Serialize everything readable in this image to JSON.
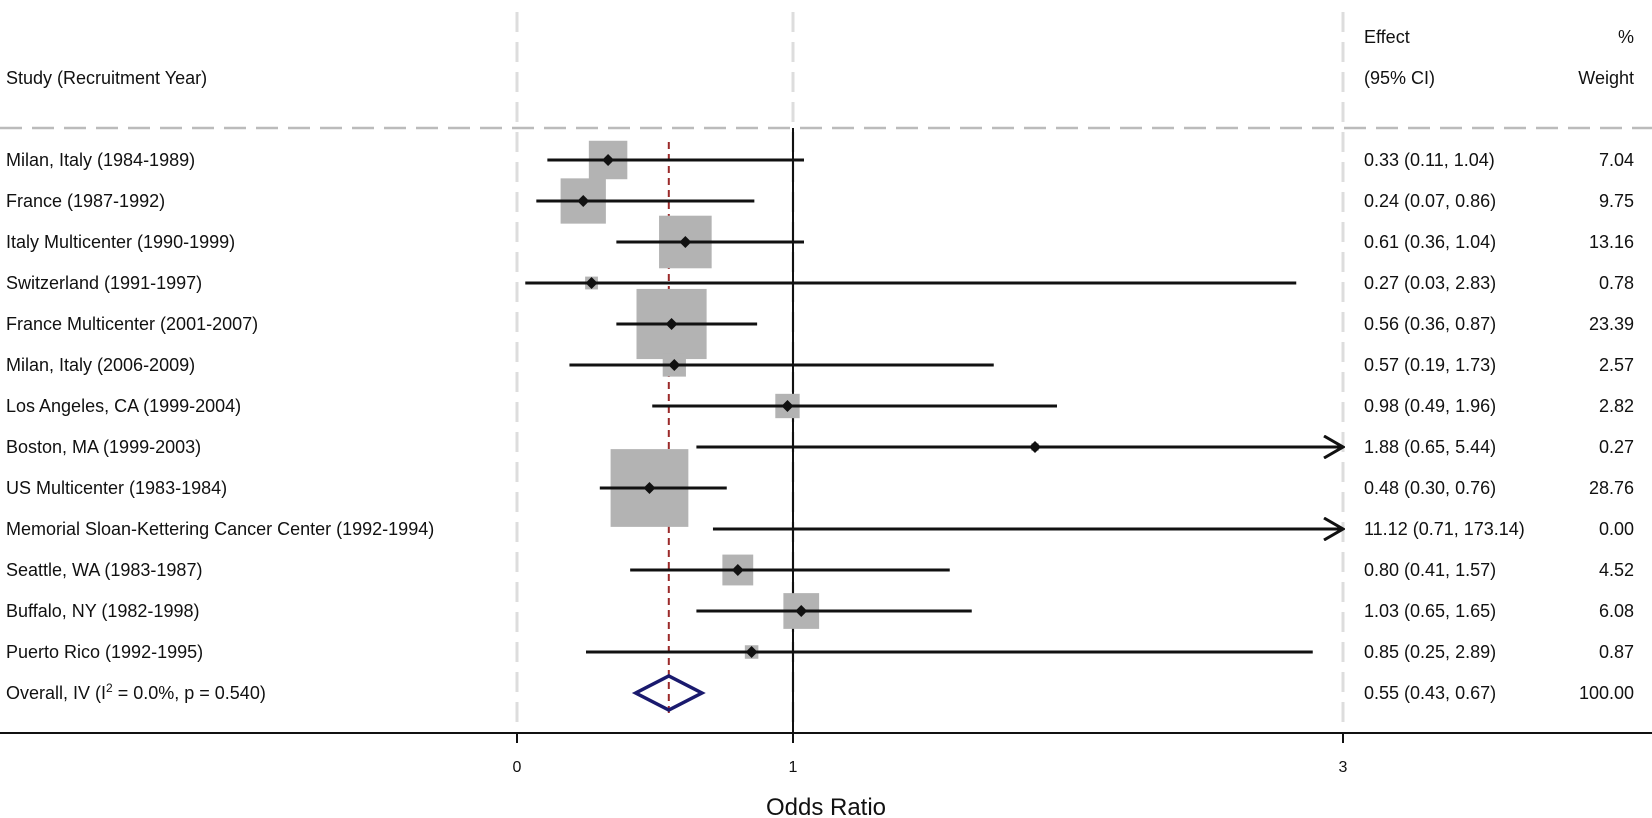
{
  "chart_data": {
    "type": "forest",
    "header": {
      "study_col": "Study (Recruitment Year)",
      "effect_line1": "Effect",
      "effect_line2": "(95% CI)",
      "weight_line1": "%",
      "weight_line2": "Weight"
    },
    "studies": [
      {
        "name": "Milan, Italy (1984-1989)",
        "or": 0.33,
        "lo": 0.11,
        "hi": 1.04,
        "ci_text": "0.33 (0.11, 1.04)",
        "weight": "7.04"
      },
      {
        "name": "France (1987-1992)",
        "or": 0.24,
        "lo": 0.07,
        "hi": 0.86,
        "ci_text": "0.24 (0.07, 0.86)",
        "weight": "9.75"
      },
      {
        "name": "Italy Multicenter  (1990-1999)",
        "or": 0.61,
        "lo": 0.36,
        "hi": 1.04,
        "ci_text": "0.61 (0.36, 1.04)",
        "weight": "13.16"
      },
      {
        "name": "Switzerland (1991-1997)",
        "or": 0.27,
        "lo": 0.03,
        "hi": 2.83,
        "ci_text": "0.27 (0.03, 2.83)",
        "weight": "0.78"
      },
      {
        "name": "France Multicenter (2001-2007)",
        "or": 0.56,
        "lo": 0.36,
        "hi": 0.87,
        "ci_text": "0.56 (0.36, 0.87)",
        "weight": "23.39"
      },
      {
        "name": "Milan, Italy (2006-2009)",
        "or": 0.57,
        "lo": 0.19,
        "hi": 1.73,
        "ci_text": "0.57 (0.19, 1.73)",
        "weight": "2.57"
      },
      {
        "name": "Los Angeles, CA (1999-2004)",
        "or": 0.98,
        "lo": 0.49,
        "hi": 1.96,
        "ci_text": "0.98 (0.49, 1.96)",
        "weight": "2.82"
      },
      {
        "name": "Boston, MA  (1999-2003)",
        "or": 1.88,
        "lo": 0.65,
        "hi": 5.44,
        "ci_text": "1.88 (0.65, 5.44)",
        "weight": "0.27"
      },
      {
        "name": "US Multicenter (1983-1984)",
        "or": 0.48,
        "lo": 0.3,
        "hi": 0.76,
        "ci_text": "0.48 (0.30, 0.76)",
        "weight": "28.76"
      },
      {
        "name": "Memorial Sloan-Kettering Cancer Center (1992-1994)",
        "or": 11.12,
        "lo": 0.71,
        "hi": 173.14,
        "ci_text": "11.12 (0.71, 173.14)",
        "weight": "0.00"
      },
      {
        "name": "Seattle, WA  (1983-1987)",
        "or": 0.8,
        "lo": 0.41,
        "hi": 1.57,
        "ci_text": "0.80 (0.41, 1.57)",
        "weight": "4.52"
      },
      {
        "name": "Buffalo, NY (1982-1998)",
        "or": 1.03,
        "lo": 0.65,
        "hi": 1.65,
        "ci_text": "1.03 (0.65, 1.65)",
        "weight": "6.08"
      },
      {
        "name": "Puerto Rico (1992-1995)",
        "or": 0.85,
        "lo": 0.25,
        "hi": 2.89,
        "ci_text": "0.85 (0.25, 2.89)",
        "weight": "0.87"
      }
    ],
    "overall": {
      "label_prefix": "Overall, IV (I",
      "label_sup": "2",
      "label_suffix": " = 0.0%, p = 0.540)",
      "or": 0.55,
      "lo": 0.43,
      "hi": 0.67,
      "ci_text": "0.55 (0.43, 0.67)",
      "weight": "100.00"
    },
    "x_ticks": [
      {
        "value": 0,
        "label": "0"
      },
      {
        "value": 1,
        "label": "1"
      },
      {
        "value": 3,
        "label": "3"
      }
    ],
    "xlabel": "Odds Ratio",
    "x_scale": "nonlinear (0, 1, 3)",
    "xlim": [
      0,
      3
    ],
    "reference_line": 1,
    "pooled_reference_line": 0.55,
    "colors": {
      "ink": "#111111",
      "box": "#b3b3b3",
      "pooled_line": "#9b2a2a",
      "diamond": "#1a1a6e",
      "gridline": "#dddddd",
      "header_rule": "#bbbbbb"
    },
    "grid": "dashed vertical gridlines at ticks"
  }
}
